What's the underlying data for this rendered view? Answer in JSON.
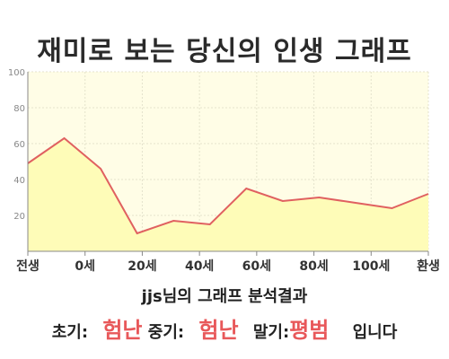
{
  "header": {
    "title": "재미로 보는 당신의 인생 그래프"
  },
  "chart_data": {
    "type": "area",
    "title": "재미로 보는 당신의 인생 그래프",
    "x": [
      0,
      1,
      2,
      3,
      4,
      5,
      6,
      7,
      8,
      9,
      10,
      11
    ],
    "values": [
      49,
      63,
      46,
      10,
      17,
      15,
      35,
      28,
      30,
      27,
      24,
      32
    ],
    "x_tick_labels": [
      "전생",
      "0세",
      "20세",
      "40세",
      "60세",
      "80세",
      "100세",
      "환생"
    ],
    "x_tick_positions": [
      0,
      2,
      4,
      6,
      8,
      10,
      12,
      14
    ],
    "y_ticks": [
      "20",
      "40",
      "60",
      "80",
      "100"
    ],
    "ylim": [
      0,
      100
    ],
    "xlabel": "",
    "ylabel": "",
    "grid": true,
    "line_color": "#e06060",
    "fill_color": "#fefcb8",
    "plot_bg": "#fffde6"
  },
  "summary": {
    "name": "jjs",
    "suffix": "님의 그래프 분석결과"
  },
  "result": {
    "early_label": "초기:",
    "early_value": "험난",
    "mid_label": "중기:",
    "mid_value": "험난",
    "late_label": "말기:",
    "late_value": "평범",
    "ending": "입니다"
  },
  "colors": {
    "accent": "#e8585a"
  }
}
